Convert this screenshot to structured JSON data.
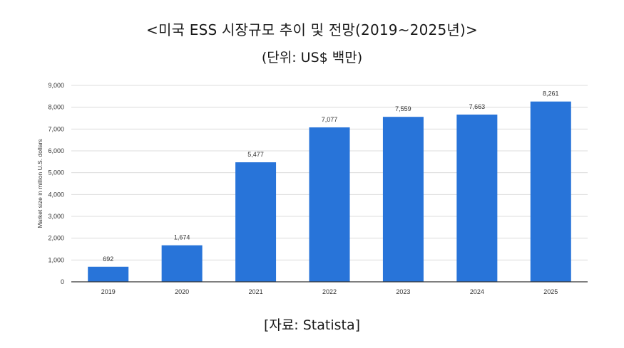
{
  "header": {
    "title": "<미국 ESS 시장규모 추이 및 전망(2019~2025년)>",
    "unit": "(단위: US$ 백만)"
  },
  "footer": {
    "source": "[자료: Statista]"
  },
  "colors": {
    "bar": "#2874d9",
    "grid": "#dcdcdc",
    "baseline": "#333333"
  },
  "chart_data": {
    "type": "bar",
    "categories": [
      "2019",
      "2020",
      "2021",
      "2022",
      "2023",
      "2024",
      "2025"
    ],
    "values": [
      692,
      1674,
      5477,
      7077,
      7559,
      7663,
      8261
    ],
    "value_labels": [
      "692",
      "1,674",
      "5,477",
      "7,077",
      "7,559",
      "7,663",
      "8,261"
    ],
    "ylabel": "Market size in million U.S. dollars",
    "ylim": [
      0,
      9000
    ],
    "yticks": [
      0,
      1000,
      2000,
      3000,
      4000,
      5000,
      6000,
      7000,
      8000,
      9000
    ],
    "ytick_labels": [
      "0",
      "1,000",
      "2,000",
      "3,000",
      "4,000",
      "5,000",
      "6,000",
      "7,000",
      "8,000",
      "9,000"
    ],
    "grid": true,
    "legend": "none"
  }
}
